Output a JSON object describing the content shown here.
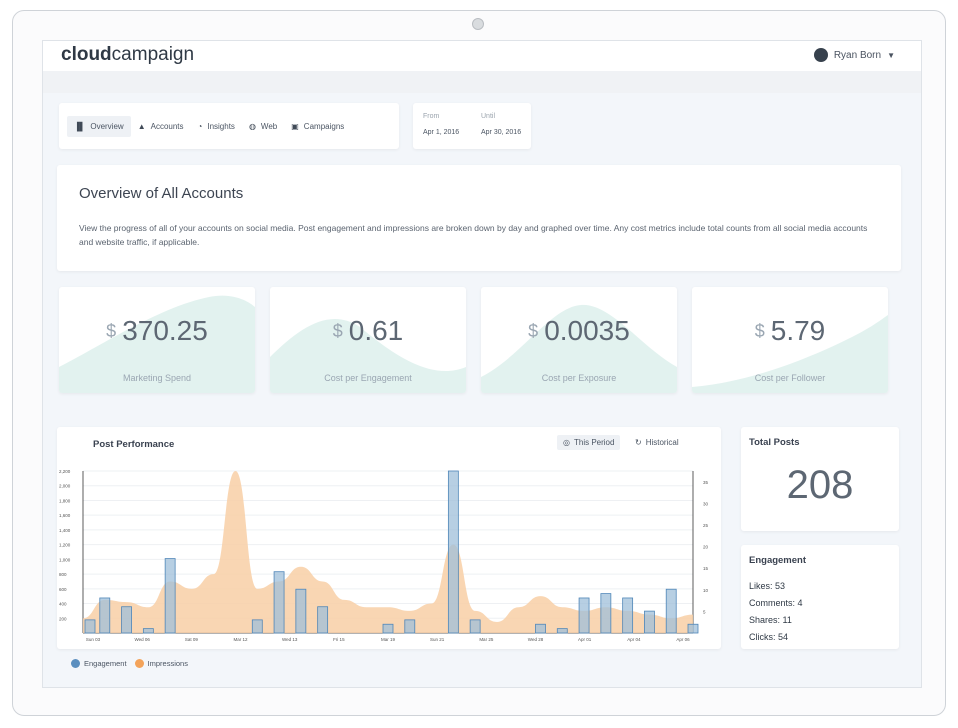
{
  "brand": {
    "bold": "cloud",
    "light": "campaign"
  },
  "user": {
    "name": "Ryan Born"
  },
  "nav": [
    {
      "icon": "bar-chart-icon",
      "glyph": "▐▌",
      "label": "Overview",
      "active": true
    },
    {
      "icon": "accounts-icon",
      "glyph": "▲",
      "label": "Accounts",
      "active": false
    },
    {
      "icon": "insights-icon",
      "glyph": "◔",
      "label": "Insights",
      "active": false
    },
    {
      "icon": "web-globe-icon",
      "glyph": "◍",
      "label": "Web",
      "active": false
    },
    {
      "icon": "briefcase-icon",
      "glyph": "▣",
      "label": "Campaigns",
      "active": false
    }
  ],
  "dates": {
    "from_label": "From",
    "from_value": "Apr 1, 2016",
    "until_label": "Until",
    "until_value": "Apr 30, 2016"
  },
  "overview": {
    "title": "Overview of All Accounts",
    "description": "View the progress of all of your accounts on social media. Post engagement and impressions are broken down by day and graphed over time. Any cost metrics include total counts from all social media accounts and website traffic, if applicable."
  },
  "metrics": [
    {
      "currency": "$",
      "value": "370.25",
      "label": "Marketing Spend"
    },
    {
      "currency": "$",
      "value": "0.61",
      "label": "Cost per Engagement"
    },
    {
      "currency": "$",
      "value": "0.0035",
      "label": "Cost per Exposure"
    },
    {
      "currency": "$",
      "value": "5.79",
      "label": "Cost per Follower"
    }
  ],
  "performance": {
    "title": "Post Performance",
    "this_period": "This Period",
    "historical": "Historical",
    "legend": [
      {
        "label": "Engagement",
        "color": "#5b8fbf"
      },
      {
        "label": "Impressions",
        "color": "#f3a35a"
      }
    ]
  },
  "chart_data": {
    "type": "bar",
    "y_ticks_left": [
      "200",
      "400",
      "600",
      "800",
      "1,000",
      "1,200",
      "1,400",
      "1,600",
      "1,800",
      "2,000",
      "2,200"
    ],
    "y_ticks_right": [
      "5",
      "10",
      "15",
      "20",
      "25",
      "30",
      "35"
    ],
    "x_labels": [
      "Sun 03",
      "Wed 06",
      "Sat 09",
      "Mar 12",
      "Wed 13",
      "Fri 15",
      "Mar 19",
      "Sun 21",
      "Mar 25",
      "Wed 28",
      "Apr 01",
      "Apr 04",
      "Apr 06"
    ],
    "series": [
      {
        "name": "Engagement",
        "values": [
          3,
          8,
          6,
          1,
          17,
          0,
          0,
          0,
          3,
          14,
          10,
          6,
          0,
          0,
          2,
          3,
          0,
          37,
          3,
          0,
          0,
          2,
          1,
          8,
          9,
          8,
          5,
          10,
          2
        ]
      },
      {
        "name": "Impressions",
        "values": [
          200,
          450,
          420,
          350,
          700,
          600,
          800,
          2200,
          600,
          700,
          900,
          700,
          450,
          350,
          350,
          300,
          400,
          1200,
          300,
          150,
          350,
          500,
          350,
          300,
          350,
          300,
          250,
          200,
          250
        ]
      }
    ]
  },
  "totals": {
    "title": "Total Posts",
    "value": "208"
  },
  "engagement": {
    "title": "Engagement",
    "likes": "Likes: 53",
    "comments": "Comments: 4",
    "shares": "Shares: 11",
    "clicks": "Clicks: 54"
  },
  "colors": {
    "accent_teal": "#d6ece8",
    "bar_fill": "#9fbfd9",
    "bar_stroke": "#4f86b8",
    "area": "#f8cfa6"
  }
}
